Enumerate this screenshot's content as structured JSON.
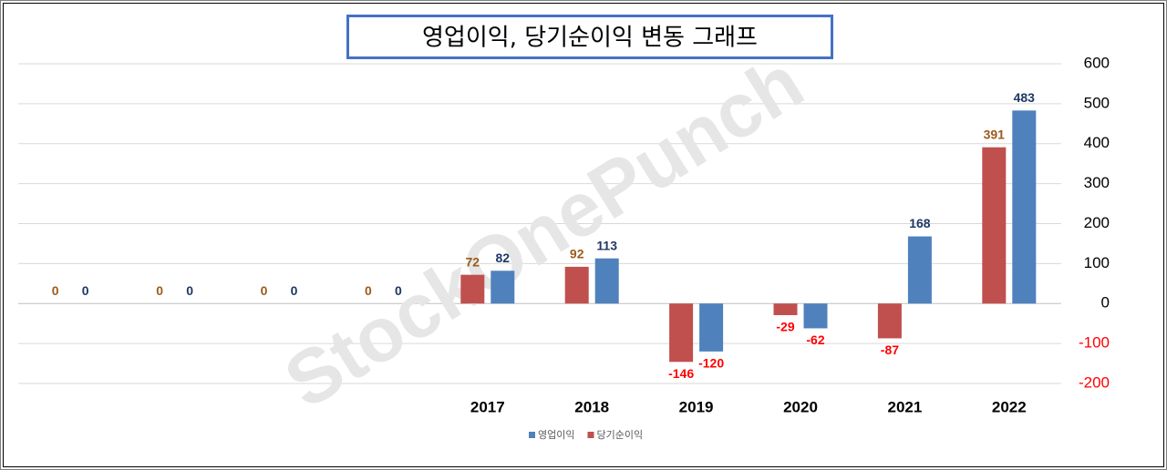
{
  "chart_data": {
    "type": "bar",
    "title": "영업이익, 당기순이익 변동 그래프",
    "watermark": "StockOnePunch",
    "categories": [
      null,
      null,
      null,
      null,
      "2017",
      "2018",
      "2019",
      "2020",
      "2021",
      "2022"
    ],
    "series": [
      {
        "name": "당기순이익",
        "color": "#c0504d",
        "label_color": "#9c5b1c",
        "values": [
          0,
          0,
          0,
          0,
          72,
          92,
          -146,
          -29,
          -87,
          391
        ]
      },
      {
        "name": "영업이익",
        "color": "#4f81bd",
        "label_color": "#1f3864",
        "values": [
          0,
          0,
          0,
          0,
          82,
          113,
          -120,
          -62,
          168,
          483
        ]
      }
    ],
    "legend_order": [
      1,
      0
    ],
    "legend_position": "bottom",
    "negative_color": "#ff0000",
    "ylim": [
      -200,
      600
    ],
    "yticks": [
      -200,
      -100,
      0,
      100,
      200,
      300,
      400,
      500,
      600
    ],
    "y_axis_side": "right",
    "grid": true
  }
}
